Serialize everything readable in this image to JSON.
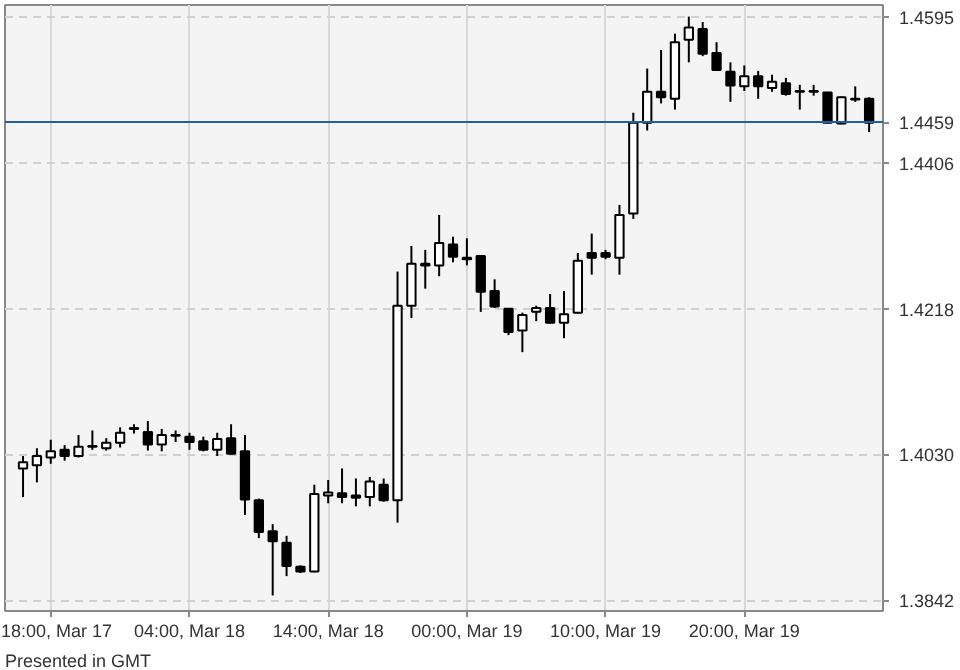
{
  "chart_data": {
    "type": "candlestick",
    "annotations": [
      "Presented in GMT"
    ],
    "categories": [
      null,
      null,
      "18:00, Mar 17",
      null,
      null,
      null,
      null,
      null,
      null,
      null,
      null,
      null,
      "04:00, Mar 18",
      null,
      null,
      null,
      null,
      null,
      null,
      null,
      null,
      null,
      "14:00, Mar 18",
      null,
      null,
      null,
      null,
      null,
      null,
      null,
      null,
      null,
      "00:00, Mar 19",
      null,
      null,
      null,
      null,
      null,
      null,
      null,
      null,
      null,
      "10:00, Mar 19",
      null,
      null,
      null,
      null,
      null,
      null,
      null,
      null,
      null,
      "20:00, Mar 19",
      null,
      null,
      null,
      null,
      null,
      null,
      null,
      null,
      null
    ],
    "ohlc": [
      [
        1.4012,
        1.4028,
        1.3975,
        1.402
      ],
      [
        1.4016,
        1.4038,
        1.3994,
        1.4028
      ],
      [
        1.4026,
        1.4049,
        1.4018,
        1.4034
      ],
      [
        1.4036,
        1.4042,
        1.4022,
        1.4028
      ],
      [
        1.4028,
        1.4055,
        1.4026,
        1.404
      ],
      [
        1.404,
        1.4061,
        1.4036,
        1.4041
      ],
      [
        1.4038,
        1.4051,
        1.4035,
        1.4045
      ],
      [
        1.4045,
        1.4065,
        1.4039,
        1.4058
      ],
      [
        1.4063,
        1.4069,
        1.4057,
        1.4064
      ],
      [
        1.4059,
        1.4073,
        1.4035,
        1.4043
      ],
      [
        1.4043,
        1.4063,
        1.4034,
        1.4055
      ],
      [
        1.4054,
        1.4061,
        1.4046,
        1.4055
      ],
      [
        1.4053,
        1.4058,
        1.4036,
        1.4046
      ],
      [
        1.4047,
        1.4053,
        1.4034,
        1.4036
      ],
      [
        1.4036,
        1.4058,
        1.4028,
        1.405
      ],
      [
        1.4051,
        1.4069,
        1.403,
        1.4031
      ],
      [
        1.4034,
        1.4055,
        1.3952,
        1.3972
      ],
      [
        1.3971,
        1.3973,
        1.3922,
        1.393
      ],
      [
        1.3931,
        1.394,
        1.3848,
        1.3918
      ],
      [
        1.3916,
        1.3925,
        1.3873,
        1.3886
      ],
      [
        1.3885,
        1.3887,
        1.3877,
        1.3879
      ],
      [
        1.3879,
        1.3991,
        1.3878,
        1.3979
      ],
      [
        1.3977,
        1.3997,
        1.3967,
        1.3981
      ],
      [
        1.398,
        1.4012,
        1.3967,
        1.3975
      ],
      [
        1.3977,
        1.3999,
        1.3963,
        1.3974
      ],
      [
        1.3975,
        1.4001,
        1.3963,
        1.3995
      ],
      [
        1.3991,
        1.3999,
        1.3969,
        1.3971
      ],
      [
        1.3971,
        1.4266,
        1.3942,
        1.4222
      ],
      [
        1.4222,
        1.4299,
        1.4206,
        1.4276
      ],
      [
        1.4274,
        1.4294,
        1.4244,
        1.4276
      ],
      [
        1.4274,
        1.4339,
        1.426,
        1.4303
      ],
      [
        1.4301,
        1.4311,
        1.4278,
        1.4285
      ],
      [
        1.4284,
        1.4309,
        1.4274,
        1.4282
      ],
      [
        1.4286,
        1.4287,
        1.4214,
        1.424
      ],
      [
        1.4241,
        1.4256,
        1.4219,
        1.4221
      ],
      [
        1.4218,
        1.4219,
        1.4184,
        1.4188
      ],
      [
        1.419,
        1.4213,
        1.4162,
        1.421
      ],
      [
        1.4214,
        1.4222,
        1.4202,
        1.4219
      ],
      [
        1.4219,
        1.4237,
        1.4199,
        1.42
      ],
      [
        1.42,
        1.4241,
        1.418,
        1.4211
      ],
      [
        1.4213,
        1.429,
        1.4212,
        1.428
      ],
      [
        1.429,
        1.4315,
        1.4262,
        1.4284
      ],
      [
        1.429,
        1.4294,
        1.4282,
        1.4285
      ],
      [
        1.4284,
        1.4352,
        1.4262,
        1.4339
      ],
      [
        1.4341,
        1.4471,
        1.4334,
        1.4458
      ],
      [
        1.4458,
        1.4528,
        1.4448,
        1.4498
      ],
      [
        1.4498,
        1.4552,
        1.4483,
        1.4491
      ],
      [
        1.4489,
        1.4573,
        1.4475,
        1.4562
      ],
      [
        1.4565,
        1.4595,
        1.4536,
        1.4581
      ],
      [
        1.4579,
        1.4588,
        1.4544,
        1.4547
      ],
      [
        1.4548,
        1.4562,
        1.4525,
        1.4526
      ],
      [
        1.4524,
        1.4536,
        1.4485,
        1.4506
      ],
      [
        1.4505,
        1.4532,
        1.4499,
        1.4518
      ],
      [
        1.4518,
        1.4525,
        1.4489,
        1.4505
      ],
      [
        1.4503,
        1.452,
        1.4498,
        1.4511
      ],
      [
        1.4509,
        1.4516,
        1.4493,
        1.4495
      ],
      [
        1.4499,
        1.4507,
        1.4475,
        1.4498
      ],
      [
        1.4499,
        1.4507,
        1.4493,
        1.4498
      ],
      [
        1.4497,
        1.4498,
        1.4457,
        1.4458
      ],
      [
        1.4457,
        1.4492,
        1.4456,
        1.4491
      ],
      [
        1.4488,
        1.4505,
        1.4485,
        1.4489
      ],
      [
        1.4489,
        1.4491,
        1.4446,
        1.4458
      ]
    ],
    "ylim": [
      1.3828,
      1.461
    ],
    "yticks": [
      {
        "value": 1.3842,
        "label": "1.3842"
      },
      {
        "value": 1.403,
        "label": "1.4030"
      },
      {
        "value": 1.4218,
        "label": "1.4218"
      },
      {
        "value": 1.4406,
        "label": "1.4406"
      },
      {
        "value": 1.4595,
        "label": "1.4595"
      }
    ],
    "grid": true,
    "ref_lines": [
      {
        "axis": "y",
        "value": 1.4459,
        "label": "1.4459",
        "color": "#1f5fa6"
      }
    ]
  }
}
